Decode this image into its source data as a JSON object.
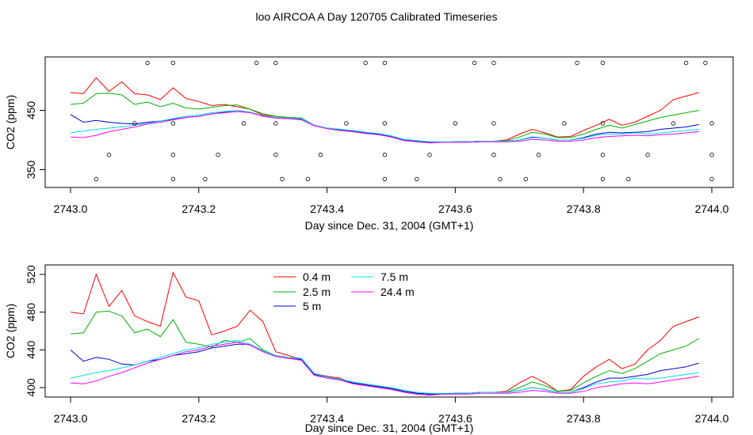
{
  "title": "loo AIRCOA A  Day 120705  Calibrated Timeseries",
  "chart_data": [
    {
      "type": "line",
      "xlabel": "Day since Dec. 31, 2004 (GMT+1)",
      "ylabel": "CO2 (ppm)",
      "xlim": [
        2743.0,
        2744.0
      ],
      "ylim": [
        320,
        540
      ],
      "xticks": [
        2743.0,
        2743.2,
        2743.4,
        2743.6,
        2743.8,
        2744.0
      ],
      "xtick_labels": [
        "2743.0",
        "2743.2",
        "2743.4",
        "2743.6",
        "2743.8",
        "2744.0"
      ],
      "yticks": [
        350,
        450
      ],
      "ytick_labels": [
        "350",
        "450"
      ],
      "x": [
        2743.0,
        2743.02,
        2743.04,
        2743.06,
        2743.08,
        2743.1,
        2743.12,
        2743.14,
        2743.16,
        2743.18,
        2743.2,
        2743.22,
        2743.24,
        2743.26,
        2743.28,
        2743.3,
        2743.32,
        2743.34,
        2743.36,
        2743.38,
        2743.4,
        2743.42,
        2743.44,
        2743.46,
        2743.48,
        2743.5,
        2743.52,
        2743.54,
        2743.56,
        2743.58,
        2743.6,
        2743.62,
        2743.64,
        2743.66,
        2743.68,
        2743.7,
        2743.72,
        2743.74,
        2743.76,
        2743.78,
        2743.8,
        2743.82,
        2743.84,
        2743.86,
        2743.88,
        2743.9,
        2743.92,
        2743.94,
        2743.96,
        2743.98
      ],
      "series": [
        {
          "name": "0.4 m",
          "color": "#ff0000",
          "values": [
            480,
            478,
            505,
            482,
            498,
            478,
            476,
            468,
            488,
            470,
            465,
            458,
            460,
            456,
            452,
            442,
            440,
            438,
            437,
            425,
            420,
            418,
            415,
            412,
            410,
            406,
            400,
            398,
            396,
            396,
            397,
            397,
            398,
            398,
            400,
            410,
            418,
            412,
            405,
            406,
            416,
            425,
            435,
            425,
            430,
            440,
            450,
            468,
            474,
            480
          ]
        },
        {
          "name": "2.5 m",
          "color": "#00b000",
          "values": [
            460,
            462,
            478,
            479,
            476,
            460,
            464,
            456,
            462,
            454,
            452,
            455,
            458,
            459,
            452,
            444,
            440,
            438,
            437,
            425,
            420,
            418,
            415,
            413,
            410,
            406,
            401,
            398,
            396,
            396,
            397,
            397,
            398,
            398,
            399,
            405,
            413,
            410,
            404,
            404,
            410,
            418,
            425,
            420,
            426,
            432,
            438,
            442,
            446,
            450
          ]
        },
        {
          "name": "5 m",
          "color": "#0000cc",
          "values": [
            443,
            430,
            433,
            430,
            428,
            427,
            430,
            432,
            435,
            438,
            440,
            444,
            447,
            448,
            447,
            440,
            437,
            436,
            435,
            424,
            420,
            417,
            415,
            412,
            410,
            406,
            400,
            398,
            396,
            396,
            397,
            397,
            398,
            398,
            398,
            400,
            405,
            403,
            400,
            400,
            404,
            410,
            413,
            412,
            413,
            414,
            418,
            420,
            422,
            426
          ]
        },
        {
          "name": "7.5 m",
          "color": "#00e0e0",
          "values": [
            412,
            415,
            418,
            420,
            422,
            425,
            428,
            432,
            436,
            440,
            442,
            446,
            448,
            450,
            447,
            441,
            438,
            437,
            436,
            425,
            420,
            418,
            416,
            413,
            411,
            407,
            401,
            399,
            397,
            397,
            397,
            397,
            398,
            398,
            398,
            400,
            404,
            403,
            400,
            400,
            403,
            408,
            410,
            410,
            412,
            410,
            412,
            414,
            416,
            418
          ]
        },
        {
          "name": "24.4 m",
          "color": "#ff00ff",
          "values": [
            405,
            404,
            408,
            414,
            418,
            422,
            427,
            430,
            434,
            438,
            440,
            444,
            446,
            448,
            446,
            440,
            437,
            436,
            434,
            424,
            419,
            416,
            414,
            411,
            409,
            405,
            399,
            397,
            395,
            396,
            396,
            396,
            397,
            397,
            397,
            398,
            401,
            400,
            398,
            398,
            400,
            404,
            406,
            407,
            408,
            407,
            409,
            410,
            412,
            414
          ]
        }
      ],
      "markers": {
        "symbol": "circle",
        "points": [
          [
            2743.04,
            334
          ],
          [
            2743.06,
            375
          ],
          [
            2743.1,
            428
          ],
          [
            2743.12,
            530
          ],
          [
            2743.16,
            334
          ],
          [
            2743.16,
            375
          ],
          [
            2743.16,
            428
          ],
          [
            2743.16,
            530
          ],
          [
            2743.21,
            334
          ],
          [
            2743.23,
            375
          ],
          [
            2743.27,
            428
          ],
          [
            2743.29,
            530
          ],
          [
            2743.32,
            530
          ],
          [
            2743.32,
            428
          ],
          [
            2743.32,
            375
          ],
          [
            2743.33,
            334
          ],
          [
            2743.37,
            334
          ],
          [
            2743.39,
            375
          ],
          [
            2743.43,
            428
          ],
          [
            2743.46,
            530
          ],
          [
            2743.49,
            530
          ],
          [
            2743.49,
            428
          ],
          [
            2743.49,
            375
          ],
          [
            2743.49,
            334
          ],
          [
            2743.54,
            334
          ],
          [
            2743.56,
            375
          ],
          [
            2743.6,
            428
          ],
          [
            2743.63,
            530
          ],
          [
            2743.66,
            530
          ],
          [
            2743.66,
            428
          ],
          [
            2743.66,
            375
          ],
          [
            2743.67,
            334
          ],
          [
            2743.71,
            334
          ],
          [
            2743.73,
            375
          ],
          [
            2743.77,
            428
          ],
          [
            2743.79,
            530
          ],
          [
            2743.83,
            530
          ],
          [
            2743.83,
            428
          ],
          [
            2743.83,
            375
          ],
          [
            2743.83,
            334
          ],
          [
            2743.87,
            334
          ],
          [
            2743.9,
            375
          ],
          [
            2743.94,
            428
          ],
          [
            2743.96,
            530
          ],
          [
            2743.99,
            530
          ],
          [
            2744.0,
            428
          ],
          [
            2744.0,
            375
          ],
          [
            2744.0,
            334
          ]
        ]
      }
    },
    {
      "type": "line",
      "xlabel": "Day since Dec. 31, 2004 (GMT+1)",
      "ylabel": "CO2 (ppm)",
      "xlim": [
        2743.0,
        2744.0
      ],
      "ylim": [
        390,
        530
      ],
      "xticks": [
        2743.0,
        2743.2,
        2743.4,
        2743.6,
        2743.8,
        2744.0
      ],
      "xtick_labels": [
        "2743.0",
        "2743.2",
        "2743.4",
        "2743.6",
        "2743.8",
        "2744.0"
      ],
      "yticks": [
        400,
        440,
        480,
        520
      ],
      "ytick_labels": [
        "400",
        "440",
        "480",
        "520"
      ],
      "legend": {
        "position": "top-center",
        "columns": 2
      },
      "x": [
        2743.0,
        2743.02,
        2743.04,
        2743.06,
        2743.08,
        2743.1,
        2743.12,
        2743.14,
        2743.16,
        2743.18,
        2743.2,
        2743.22,
        2743.24,
        2743.26,
        2743.28,
        2743.3,
        2743.32,
        2743.34,
        2743.36,
        2743.38,
        2743.4,
        2743.42,
        2743.44,
        2743.46,
        2743.48,
        2743.5,
        2743.52,
        2743.54,
        2743.56,
        2743.58,
        2743.6,
        2743.62,
        2743.64,
        2743.66,
        2743.68,
        2743.7,
        2743.72,
        2743.74,
        2743.76,
        2743.78,
        2743.8,
        2743.82,
        2743.84,
        2743.86,
        2743.88,
        2743.9,
        2743.92,
        2743.94,
        2743.96,
        2743.98
      ],
      "series": [
        {
          "name": "0.4 m",
          "color": "#ff0000",
          "values": [
            480,
            478,
            520,
            486,
            503,
            476,
            470,
            465,
            522,
            496,
            492,
            456,
            460,
            465,
            482,
            470,
            438,
            434,
            430,
            415,
            412,
            410,
            405,
            403,
            401,
            400,
            396,
            394,
            393,
            393,
            394,
            394,
            395,
            395,
            396,
            405,
            412,
            405,
            396,
            398,
            412,
            422,
            430,
            420,
            425,
            440,
            450,
            465,
            470,
            475
          ]
        },
        {
          "name": "2.5 m",
          "color": "#00b000",
          "values": [
            457,
            458,
            480,
            481,
            476,
            458,
            462,
            454,
            472,
            448,
            446,
            443,
            450,
            448,
            452,
            440,
            434,
            432,
            431,
            415,
            411,
            409,
            405,
            403,
            401,
            399,
            396,
            394,
            393,
            393,
            394,
            394,
            395,
            395,
            395,
            400,
            406,
            402,
            396,
            397,
            405,
            412,
            418,
            415,
            420,
            428,
            436,
            440,
            444,
            452
          ]
        },
        {
          "name": "5 m",
          "color": "#0000cc",
          "values": [
            440,
            428,
            432,
            430,
            425,
            424,
            428,
            430,
            434,
            436,
            438,
            442,
            444,
            446,
            446,
            438,
            433,
            431,
            430,
            414,
            411,
            409,
            405,
            403,
            401,
            399,
            396,
            394,
            393,
            393,
            394,
            394,
            395,
            395,
            395,
            397,
            400,
            398,
            395,
            395,
            400,
            406,
            410,
            410,
            412,
            414,
            418,
            420,
            422,
            426
          ]
        },
        {
          "name": "7.5 m",
          "color": "#00e0e0",
          "values": [
            410,
            413,
            416,
            418,
            421,
            424,
            428,
            432,
            436,
            440,
            442,
            446,
            448,
            450,
            446,
            439,
            434,
            432,
            431,
            415,
            411,
            409,
            406,
            404,
            402,
            400,
            397,
            395,
            394,
            394,
            394,
            394,
            395,
            395,
            395,
            397,
            400,
            398,
            395,
            395,
            399,
            404,
            406,
            407,
            410,
            409,
            410,
            412,
            414,
            416
          ]
        },
        {
          "name": "24.4 m",
          "color": "#ff00ff",
          "values": [
            405,
            404,
            407,
            412,
            416,
            421,
            426,
            430,
            434,
            438,
            440,
            444,
            446,
            448,
            445,
            438,
            433,
            431,
            429,
            413,
            410,
            408,
            404,
            402,
            400,
            398,
            395,
            393,
            392,
            393,
            393,
            393,
            394,
            394,
            394,
            395,
            397,
            396,
            394,
            394,
            396,
            400,
            402,
            404,
            405,
            404,
            406,
            408,
            410,
            412
          ]
        }
      ]
    }
  ]
}
